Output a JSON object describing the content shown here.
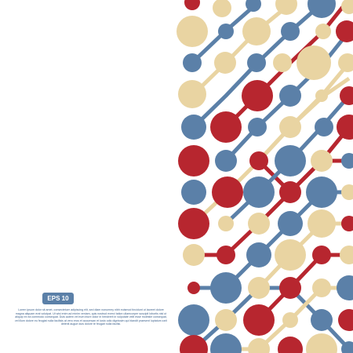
{
  "badge": "EPS 10",
  "body_text": "Lorem ipsum dolor sit amet, consectetuer adipiscing elit, sed diam nonummy nibh euismod tincidunt ut laoreet dolore magna aliquam erat volutpat. Ut wisi enim ad minim veniam, quis nostrud exerci tation ullamcorper suscipit lobortis nisl ut aliquip ex ea commodo consequat. Duis autem vel eum iriure dolor in hendrerit in vulputate velit esse molestie consequat, vel illum dolore eu feugiat nulla facilisis at vero eros et accumsan et iusto odio dignissim qui blandit praesent luptatum zzril delenit augue duis dolore te feugait nulla facilisi."
}
